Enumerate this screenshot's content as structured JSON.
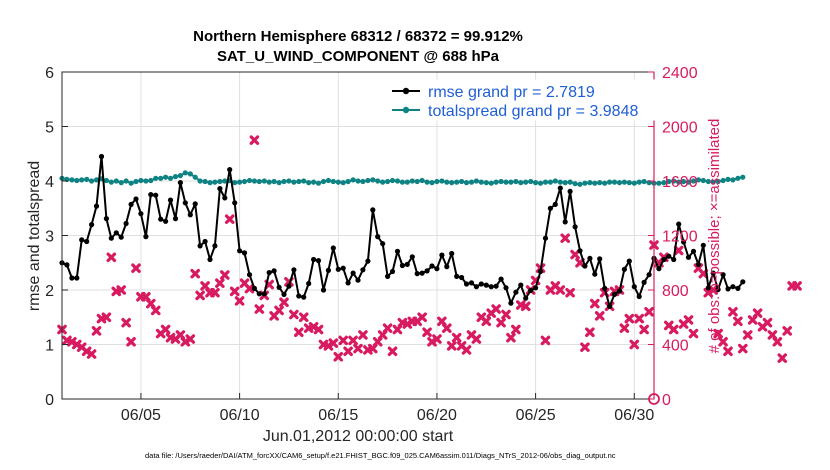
{
  "chart_data": {
    "type": "line",
    "title": "Northern Hemisphere 68312 / 68372 = 99.912%",
    "subtitle": "SAT_U_WIND_COMPONENT @ 688 hPa",
    "xlabel": "Jun.01,2012 00:00:00 start",
    "ylabel_left": "rmse and totalspread",
    "ylabel_right": "# of obs: o=possible; ×=assimilated",
    "xlim": [
      1,
      31
    ],
    "ylim_left": [
      0,
      6
    ],
    "ylim_right": [
      0,
      2400
    ],
    "x_ticks": [
      5,
      10,
      15,
      20,
      25,
      30
    ],
    "x_tick_labels": [
      "06/05",
      "06/10",
      "06/15",
      "06/20",
      "06/25",
      "06/30"
    ],
    "y_ticks_left": [
      0,
      1,
      2,
      3,
      4,
      5,
      6
    ],
    "y_ticks_right": [
      0,
      400,
      800,
      1200,
      1600,
      2000,
      2400
    ],
    "grid": true,
    "legend_position": "top-right",
    "colors": {
      "rmse": "#000000",
      "spread": "#0e8383",
      "obs": "#d81b60",
      "legend_text": "#1f5fd6",
      "grid": "#dfdfdf"
    },
    "series": [
      {
        "name": "rmse grand pr = 2.7819",
        "axis": "left",
        "x_start": 1.0,
        "x_step": 0.25,
        "values": [
          2.5,
          2.46,
          2.22,
          2.22,
          2.92,
          2.89,
          3.2,
          3.54,
          4.45,
          3.31,
          2.95,
          3.05,
          2.97,
          3.22,
          3.57,
          3.67,
          3.4,
          2.98,
          3.75,
          3.74,
          3.3,
          3.26,
          3.65,
          3.31,
          3.97,
          3.6,
          3.38,
          3.58,
          2.81,
          2.89,
          2.56,
          2.81,
          3.86,
          3.69,
          4.21,
          3.6,
          2.72,
          2.68,
          2.28,
          2.03,
          1.93,
          1.93,
          2.32,
          2.35,
          2.05,
          1.92,
          2.07,
          2.37,
          1.89,
          1.87,
          2.12,
          2.56,
          2.54,
          2.0,
          2.36,
          2.77,
          2.38,
          2.4,
          2.13,
          2.31,
          2.18,
          2.37,
          2.53,
          3.47,
          2.98,
          2.85,
          2.25,
          2.34,
          2.71,
          2.45,
          2.47,
          2.61,
          2.3,
          2.31,
          2.35,
          2.44,
          2.39,
          2.64,
          2.43,
          2.67,
          2.25,
          2.23,
          2.11,
          2.13,
          2.06,
          2.11,
          2.09,
          2.06,
          2.07,
          2.2,
          2.04,
          1.76,
          1.96,
          2.09,
          1.85,
          1.99,
          2.04,
          2.34,
          2.95,
          3.5,
          3.57,
          3.87,
          3.25,
          3.81,
          3.16,
          2.72,
          2.44,
          2.58,
          2.29,
          2.57,
          2.03,
          1.7,
          1.92,
          1.98,
          2.38,
          2.53,
          2.06,
          1.88,
          2.14,
          2.28,
          2.58,
          2.39,
          2.56,
          2.62,
          2.56,
          3.21,
          2.88,
          2.6,
          2.71,
          2.47,
          2.82,
          2.04,
          2.31,
          2.01,
          2.28,
          2.02,
          2.06,
          2.03,
          2.15
        ]
      },
      {
        "name": "totalspread grand pr = 3.9848",
        "axis": "left",
        "x_start": 1.0,
        "x_step": 0.25,
        "values": [
          4.05,
          4.03,
          4.02,
          4.01,
          4.02,
          4.03,
          4.0,
          4.02,
          4.04,
          4.01,
          3.98,
          4.0,
          3.97,
          4.0,
          3.96,
          3.99,
          4.01,
          4.0,
          4.01,
          4.05,
          4.05,
          4.07,
          4.05,
          4.08,
          4.1,
          4.15,
          4.13,
          4.07,
          4.0,
          3.99,
          3.97,
          3.98,
          3.99,
          4.0,
          4.01,
          3.97,
          3.98,
          3.99,
          4.01,
          4.0,
          3.99,
          4.0,
          3.98,
          3.99,
          3.97,
          3.99,
          4.0,
          3.98,
          3.99,
          4.0,
          3.97,
          3.98,
          3.96,
          3.99,
          4.01,
          3.99,
          3.98,
          3.97,
          3.99,
          4.02,
          4.0,
          3.99,
          4.01,
          4.02,
          4.0,
          3.98,
          3.99,
          4.01,
          4.0,
          3.98,
          3.98,
          4.0,
          3.99,
          4.01,
          3.98,
          3.97,
          3.99,
          4.0,
          3.98,
          3.97,
          3.98,
          3.99,
          3.97,
          3.98,
          4.0,
          3.98,
          3.97,
          3.96,
          3.98,
          3.99,
          3.98,
          3.98,
          3.99,
          3.97,
          3.98,
          3.99,
          3.97,
          3.96,
          3.98,
          3.98,
          4.0,
          3.98,
          3.97,
          3.98,
          3.95,
          3.94,
          3.96,
          3.97,
          3.96,
          3.97,
          3.96,
          3.98,
          3.98,
          3.97,
          3.98,
          3.97,
          3.96,
          3.98,
          3.99,
          3.97,
          3.96,
          3.96,
          3.97,
          3.99,
          4.0,
          3.98,
          3.99,
          3.98,
          4.0,
          4.02,
          4.01,
          3.99,
          3.98,
          3.99,
          4.01,
          4.03,
          4.02,
          4.05,
          4.07
        ]
      },
      {
        "name": "# of obs assimilated",
        "axis": "right",
        "marker": "x",
        "x_start": 1.0,
        "x_step": 0.25,
        "values": [
          510,
          430,
          420,
          400,
          380,
          350,
          330,
          500,
          590,
          600,
          1040,
          790,
          800,
          560,
          420,
          960,
          750,
          750,
          700,
          650,
          480,
          510,
          450,
          440,
          470,
          420,
          440,
          920,
          760,
          830,
          780,
          780,
          850,
          910,
          1320,
          790,
          720,
          850,
          810,
          1900,
          660,
          760,
          840,
          610,
          650,
          710,
          860,
          620,
          490,
          600,
          520,
          530,
          510,
          400,
          390,
          410,
          310,
          430,
          350,
          430,
          370,
          470,
          360,
          370,
          420,
          470,
          520,
          350,
          510,
          560,
          550,
          570,
          570,
          600,
          490,
          420,
          440,
          570,
          520,
          390,
          450,
          390,
          360,
          470,
          440,
          600,
          570,
          630,
          660,
          560,
          620,
          450,
          510,
          690,
          680,
          800,
          870,
          960,
          430,
          800,
          830,
          800,
          1180,
          780,
          1060,
          1000,
          380,
          490,
          700,
          610,
          780,
          680,
          790,
          800,
          520,
          590,
          400,
          590,
          510,
          640,
          1130,
          1000,
          1040,
          540,
          510,
          1090,
          550,
          580,
          480,
          960,
          920,
          780,
          800,
          480,
          420,
          350,
          640,
          570,
          370,
          470,
          580,
          630,
          530,
          560,
          470,
          420,
          300,
          500,
          830,
          830
        ]
      }
    ]
  },
  "footer_text": "data file: /Users/raeder/DAI/ATM_forcXX/CAM6_setup/f.e21.FHIST_BGC.f09_025.CAM6assim.011/Diags_NTrS_2012-06/obs_diag_output.nc"
}
